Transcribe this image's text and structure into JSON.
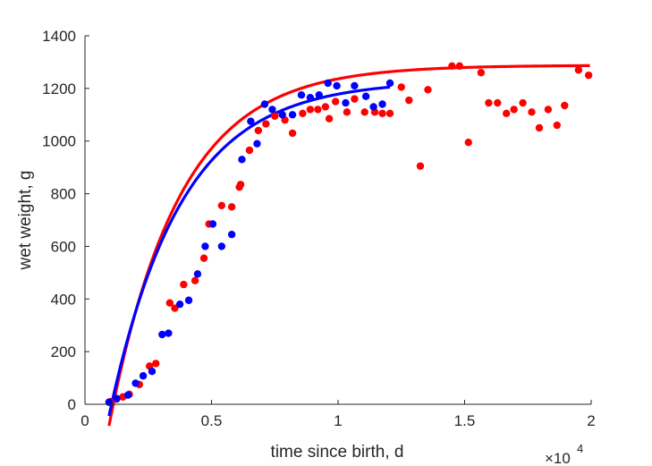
{
  "chart_data": {
    "type": "scatter",
    "title": "",
    "xlabel": "time since birth, d",
    "ylabel": "wet weight, g",
    "x_multiplier": "×10",
    "x_multiplier_exponent": "4",
    "xlim": [
      0,
      20000
    ],
    "ylim": [
      0,
      1400
    ],
    "x_ticks": [
      0,
      5000,
      10000,
      15000,
      20000
    ],
    "x_tick_labels": [
      "0",
      "0.5",
      "1",
      "1.5",
      "2"
    ],
    "y_ticks": [
      0,
      200,
      400,
      600,
      800,
      1000,
      1200,
      1400
    ],
    "y_tick_labels": [
      "0",
      "200",
      "400",
      "600",
      "800",
      "1000",
      "1200",
      "1400"
    ],
    "grid": false,
    "legend": "none",
    "series": [
      {
        "kind": "points",
        "color": "#ff0000",
        "points": [
          [
            1000,
            10
          ],
          [
            1250,
            20
          ],
          [
            1500,
            28
          ],
          [
            1750,
            38
          ],
          [
            2150,
            75
          ],
          [
            2550,
            145
          ],
          [
            2800,
            155
          ],
          [
            3350,
            385
          ],
          [
            3550,
            365
          ],
          [
            3900,
            455
          ],
          [
            4350,
            470
          ],
          [
            4700,
            555
          ],
          [
            4900,
            685
          ],
          [
            5400,
            755
          ],
          [
            5800,
            750
          ],
          [
            6100,
            825
          ],
          [
            6150,
            835
          ],
          [
            6500,
            965
          ],
          [
            6850,
            1040
          ],
          [
            7150,
            1065
          ],
          [
            7500,
            1095
          ],
          [
            7900,
            1080
          ],
          [
            8200,
            1030
          ],
          [
            8600,
            1105
          ],
          [
            8900,
            1120
          ],
          [
            9200,
            1120
          ],
          [
            9500,
            1130
          ],
          [
            9650,
            1085
          ],
          [
            9900,
            1150
          ],
          [
            10350,
            1110
          ],
          [
            10650,
            1160
          ],
          [
            11050,
            1110
          ],
          [
            11450,
            1110
          ],
          [
            11750,
            1105
          ],
          [
            12050,
            1105
          ],
          [
            12500,
            1205
          ],
          [
            12800,
            1155
          ],
          [
            13250,
            905
          ],
          [
            13550,
            1195
          ],
          [
            14500,
            1285
          ],
          [
            14800,
            1285
          ],
          [
            15150,
            995
          ],
          [
            15650,
            1260
          ],
          [
            15950,
            1145
          ],
          [
            16300,
            1145
          ],
          [
            16650,
            1105
          ],
          [
            16950,
            1120
          ],
          [
            17300,
            1145
          ],
          [
            17650,
            1110
          ],
          [
            17950,
            1050
          ],
          [
            18300,
            1120
          ],
          [
            18650,
            1060
          ],
          [
            18950,
            1135
          ],
          [
            19500,
            1270
          ],
          [
            19900,
            1250
          ]
        ]
      },
      {
        "kind": "points",
        "color": "#0000ff",
        "points": [
          [
            950,
            8
          ],
          [
            1250,
            22
          ],
          [
            1700,
            35
          ],
          [
            2000,
            80
          ],
          [
            2300,
            108
          ],
          [
            2650,
            125
          ],
          [
            3050,
            265
          ],
          [
            3300,
            270
          ],
          [
            3750,
            380
          ],
          [
            4100,
            395
          ],
          [
            4450,
            495
          ],
          [
            4750,
            600
          ],
          [
            5050,
            685
          ],
          [
            5400,
            600
          ],
          [
            5800,
            645
          ],
          [
            6200,
            930
          ],
          [
            6550,
            1075
          ],
          [
            6800,
            990
          ],
          [
            7100,
            1140
          ],
          [
            7400,
            1120
          ],
          [
            7800,
            1100
          ],
          [
            8200,
            1100
          ],
          [
            8550,
            1175
          ],
          [
            8900,
            1165
          ],
          [
            9250,
            1175
          ],
          [
            9600,
            1220
          ],
          [
            9950,
            1210
          ],
          [
            10300,
            1145
          ],
          [
            10650,
            1210
          ],
          [
            11100,
            1170
          ],
          [
            11400,
            1130
          ],
          [
            11750,
            1140
          ],
          [
            12050,
            1220
          ]
        ]
      },
      {
        "kind": "line",
        "color": "#ff0000",
        "fit": {
          "L": 1288,
          "k": 0.000362,
          "t0": 1120,
          "x_start": 950,
          "x_end": 19950
        }
      },
      {
        "kind": "line",
        "color": "#0000ff",
        "fit": {
          "L": 1230,
          "k": 0.000354,
          "t0": 1050,
          "x_start": 950,
          "x_end": 12050
        }
      }
    ]
  }
}
